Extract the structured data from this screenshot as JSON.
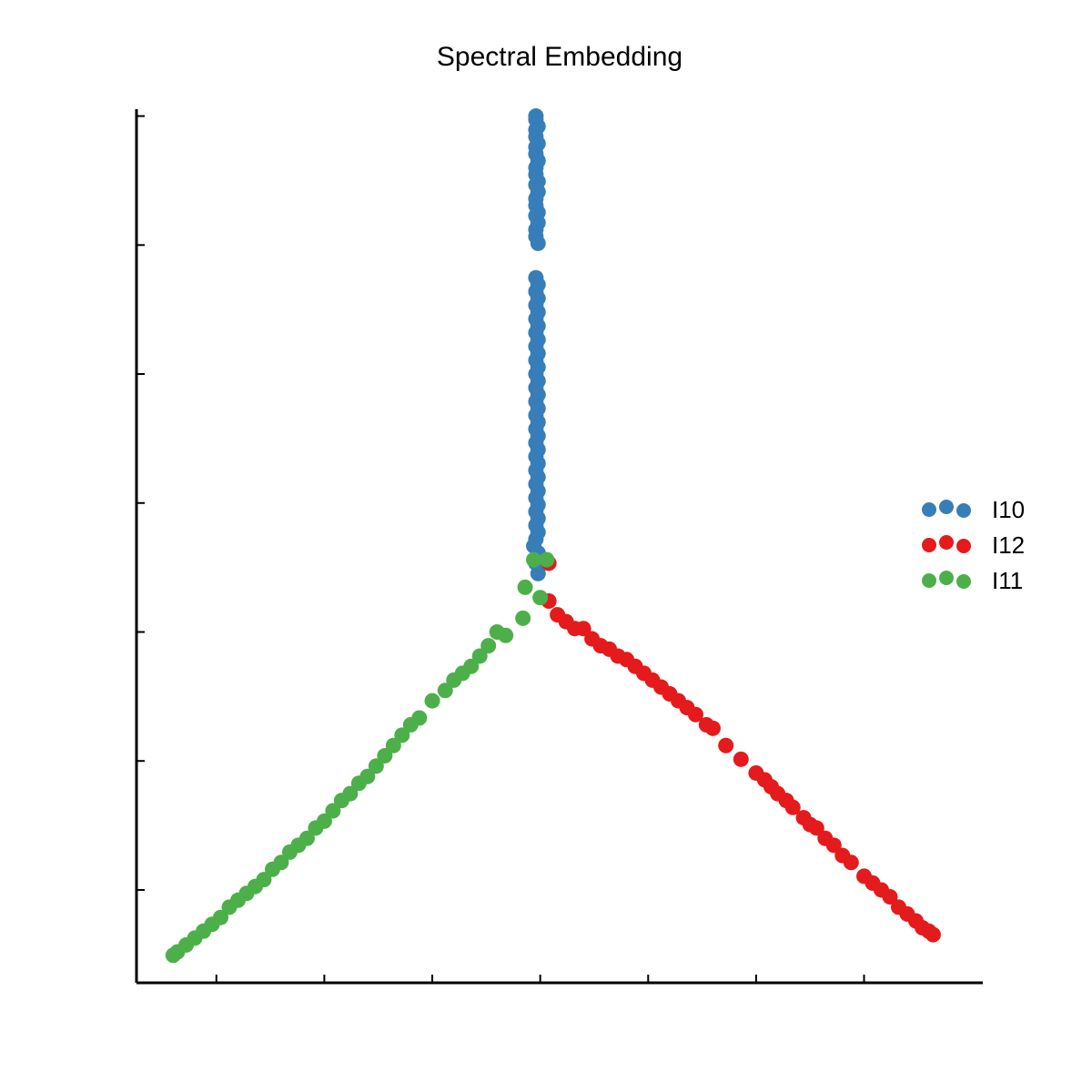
{
  "chart_data": {
    "type": "scatter",
    "title": "Spectral Embedding",
    "xlabel": "",
    "ylabel": "",
    "xlim": [
      -1.87,
      2.05
    ],
    "ylim": [
      -1.27,
      1.27
    ],
    "x_ticks": [
      -1.5,
      -1.0,
      -0.5,
      0.0,
      0.5,
      1.0,
      1.5
    ],
    "y_ticks": [
      -1.0,
      -0.625,
      -0.25,
      0.125,
      0.5,
      0.875,
      1.25
    ],
    "grid": false,
    "legend_position": "right",
    "series": [
      {
        "name": "I10",
        "color": "#377eb8",
        "points": [
          [
            -0.02,
            1.25
          ],
          [
            -0.02,
            1.24
          ],
          [
            -0.01,
            1.22
          ],
          [
            -0.02,
            1.21
          ],
          [
            -0.02,
            1.19
          ],
          [
            -0.01,
            1.17
          ],
          [
            -0.02,
            1.16
          ],
          [
            -0.02,
            1.14
          ],
          [
            -0.01,
            1.12
          ],
          [
            -0.02,
            1.1
          ],
          [
            -0.02,
            1.08
          ],
          [
            -0.01,
            1.06
          ],
          [
            -0.02,
            1.05
          ],
          [
            -0.01,
            1.03
          ],
          [
            -0.02,
            1.01
          ],
          [
            -0.02,
            0.99
          ],
          [
            -0.01,
            0.97
          ],
          [
            -0.02,
            0.96
          ],
          [
            -0.01,
            0.94
          ],
          [
            -0.02,
            0.92
          ],
          [
            -0.02,
            0.9
          ],
          [
            -0.01,
            0.88
          ],
          [
            -0.02,
            0.78
          ],
          [
            -0.01,
            0.76
          ],
          [
            -0.02,
            0.74
          ],
          [
            -0.01,
            0.72
          ],
          [
            -0.02,
            0.7
          ],
          [
            -0.01,
            0.68
          ],
          [
            -0.02,
            0.66
          ],
          [
            -0.01,
            0.64
          ],
          [
            -0.02,
            0.62
          ],
          [
            -0.01,
            0.6
          ],
          [
            -0.02,
            0.58
          ],
          [
            -0.01,
            0.56
          ],
          [
            -0.02,
            0.54
          ],
          [
            -0.01,
            0.52
          ],
          [
            -0.02,
            0.5
          ],
          [
            -0.01,
            0.48
          ],
          [
            -0.02,
            0.46
          ],
          [
            -0.01,
            0.44
          ],
          [
            -0.02,
            0.42
          ],
          [
            -0.01,
            0.4
          ],
          [
            -0.02,
            0.38
          ],
          [
            -0.01,
            0.36
          ],
          [
            -0.02,
            0.34
          ],
          [
            -0.01,
            0.32
          ],
          [
            -0.02,
            0.3
          ],
          [
            -0.01,
            0.28
          ],
          [
            -0.02,
            0.26
          ],
          [
            -0.01,
            0.24
          ],
          [
            -0.02,
            0.22
          ],
          [
            -0.01,
            0.2
          ],
          [
            -0.02,
            0.18
          ],
          [
            -0.01,
            0.16
          ],
          [
            -0.02,
            0.14
          ],
          [
            -0.01,
            0.12
          ],
          [
            -0.02,
            0.1
          ],
          [
            -0.01,
            0.08
          ],
          [
            -0.02,
            0.06
          ],
          [
            -0.01,
            0.04
          ],
          [
            -0.02,
            0.02
          ],
          [
            -0.03,
            0.0
          ],
          [
            -0.01,
            -0.02
          ],
          [
            0.01,
            -0.05
          ],
          [
            -0.02,
            -0.05
          ],
          [
            -0.01,
            -0.08
          ]
        ]
      },
      {
        "name": "I12",
        "color": "#e41a1c",
        "points": [
          [
            0.04,
            -0.16
          ],
          [
            0.08,
            -0.2
          ],
          [
            0.12,
            -0.22
          ],
          [
            0.16,
            -0.24
          ],
          [
            0.2,
            -0.24
          ],
          [
            0.24,
            -0.27
          ],
          [
            0.28,
            -0.29
          ],
          [
            0.32,
            -0.3
          ],
          [
            0.36,
            -0.32
          ],
          [
            0.4,
            -0.33
          ],
          [
            0.44,
            -0.35
          ],
          [
            0.48,
            -0.37
          ],
          [
            0.52,
            -0.39
          ],
          [
            0.56,
            -0.41
          ],
          [
            0.6,
            -0.43
          ],
          [
            0.64,
            -0.45
          ],
          [
            0.68,
            -0.47
          ],
          [
            0.72,
            -0.49
          ],
          [
            0.77,
            -0.52
          ],
          [
            0.8,
            -0.53
          ],
          [
            0.86,
            -0.58
          ],
          [
            0.93,
            -0.62
          ],
          [
            1.0,
            -0.66
          ],
          [
            1.04,
            -0.68
          ],
          [
            1.07,
            -0.7
          ],
          [
            1.1,
            -0.72
          ],
          [
            1.14,
            -0.74
          ],
          [
            1.17,
            -0.76
          ],
          [
            1.22,
            -0.79
          ],
          [
            1.25,
            -0.81
          ],
          [
            1.28,
            -0.82
          ],
          [
            1.32,
            -0.85
          ],
          [
            1.36,
            -0.87
          ],
          [
            1.4,
            -0.9
          ],
          [
            1.44,
            -0.92
          ],
          [
            1.5,
            -0.96
          ],
          [
            1.54,
            -0.98
          ],
          [
            1.58,
            -1.0
          ],
          [
            1.62,
            -1.02
          ],
          [
            1.66,
            -1.05
          ],
          [
            1.7,
            -1.07
          ],
          [
            1.74,
            -1.09
          ],
          [
            1.77,
            -1.11
          ],
          [
            1.8,
            -1.12
          ],
          [
            1.82,
            -1.13
          ],
          [
            0.04,
            -0.05
          ]
        ]
      },
      {
        "name": "I11",
        "color": "#4daf4a",
        "points": [
          [
            -0.03,
            -0.04
          ],
          [
            0.03,
            -0.04
          ],
          [
            -0.07,
            -0.12
          ],
          [
            0.0,
            -0.15
          ],
          [
            -0.08,
            -0.21
          ],
          [
            -0.16,
            -0.26
          ],
          [
            -0.2,
            -0.25
          ],
          [
            -0.24,
            -0.29
          ],
          [
            -0.28,
            -0.32
          ],
          [
            -0.32,
            -0.35
          ],
          [
            -0.36,
            -0.37
          ],
          [
            -0.4,
            -0.39
          ],
          [
            -0.44,
            -0.42
          ],
          [
            -0.5,
            -0.45
          ],
          [
            -0.56,
            -0.5
          ],
          [
            -0.6,
            -0.52
          ],
          [
            -0.64,
            -0.55
          ],
          [
            -0.68,
            -0.58
          ],
          [
            -0.72,
            -0.61
          ],
          [
            -0.76,
            -0.64
          ],
          [
            -0.8,
            -0.67
          ],
          [
            -0.84,
            -0.69
          ],
          [
            -0.88,
            -0.72
          ],
          [
            -0.92,
            -0.74
          ],
          [
            -0.96,
            -0.77
          ],
          [
            -1.0,
            -0.8
          ],
          [
            -1.04,
            -0.82
          ],
          [
            -1.08,
            -0.85
          ],
          [
            -1.12,
            -0.87
          ],
          [
            -1.16,
            -0.89
          ],
          [
            -1.2,
            -0.92
          ],
          [
            -1.24,
            -0.94
          ],
          [
            -1.28,
            -0.97
          ],
          [
            -1.32,
            -0.99
          ],
          [
            -1.36,
            -1.01
          ],
          [
            -1.4,
            -1.03
          ],
          [
            -1.44,
            -1.05
          ],
          [
            -1.48,
            -1.08
          ],
          [
            -1.52,
            -1.1
          ],
          [
            -1.56,
            -1.12
          ],
          [
            -1.6,
            -1.14
          ],
          [
            -1.64,
            -1.16
          ],
          [
            -1.68,
            -1.18
          ],
          [
            -1.7,
            -1.19
          ]
        ]
      }
    ]
  }
}
